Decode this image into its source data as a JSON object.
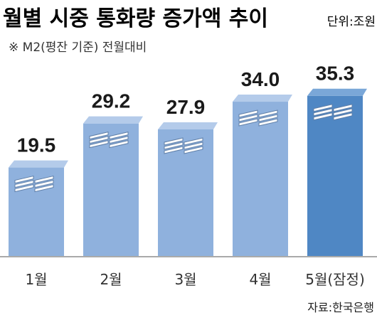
{
  "chart_data": {
    "type": "bar",
    "title": "월별 시중 통화량 증가액 추이",
    "unit_label": "단위:조원",
    "subtitle": "※ M2(평잔 기준) 전월대비",
    "categories": [
      "1월",
      "2월",
      "3월",
      "4월",
      "5월(잠정)"
    ],
    "values": [
      19.5,
      29.2,
      27.9,
      34.0,
      35.3
    ],
    "value_labels": [
      "19.5",
      "29.2",
      "27.9",
      "34.0",
      "35.3"
    ],
    "ylim": [
      0,
      40
    ],
    "xlabel": "",
    "ylabel": "",
    "grid": false,
    "source": "자료:한국은행",
    "colors": {
      "bar_light": "#8fb1dd",
      "bar_light_top": "#b4cbea",
      "bar_highlight": "#4f87c4",
      "bar_highlight_top": "#7aa7d8",
      "text": "#1a1a1a",
      "baseline": "#555555"
    }
  }
}
